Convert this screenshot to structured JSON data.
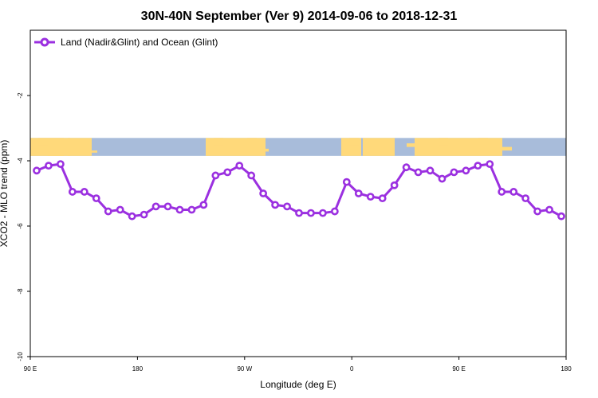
{
  "chart_data": {
    "type": "line",
    "title": "30N-40N September (Ver 9)   2014-09-06 to 2018-12-31",
    "xlabel": "Longitude (deg E)",
    "ylabel": "XCO2 - MLO trend (ppm)",
    "x_ticks": [
      "90 E",
      "180",
      "90 W",
      "0",
      "90 E",
      "180"
    ],
    "y_ticks": [
      "-10",
      "-8",
      "-6",
      "-4",
      "-2"
    ],
    "ylim": [
      -10,
      0
    ],
    "grid": false,
    "legend_position": "top-left",
    "series": [
      {
        "name": "Land (Nadir&Glint) and Ocean (Glint)",
        "color": "#9b30e0",
        "values": [
          -4.3,
          -4.15,
          -4.1,
          -4.95,
          -4.95,
          -5.15,
          -5.55,
          -5.5,
          -5.7,
          -5.65,
          -5.4,
          -5.4,
          -5.5,
          -5.5,
          -5.35,
          -4.45,
          -4.35,
          -4.15,
          -4.45,
          -5.0,
          -5.35,
          -5.4,
          -5.6,
          -5.6,
          -5.6,
          -5.55,
          -4.65,
          -5.0,
          -5.1,
          -5.15,
          -4.75,
          -4.2,
          -4.35,
          -4.3,
          -4.55,
          -4.35,
          -4.3,
          -4.15,
          -4.1,
          -4.95,
          -4.95,
          -5.15,
          -5.55,
          -5.5,
          -5.7
        ]
      }
    ],
    "map_strip": {
      "land_color": "#ffd97a",
      "ocean_color": "#a8bcda",
      "y_top": -3.3,
      "y_bottom": -3.85
    }
  }
}
